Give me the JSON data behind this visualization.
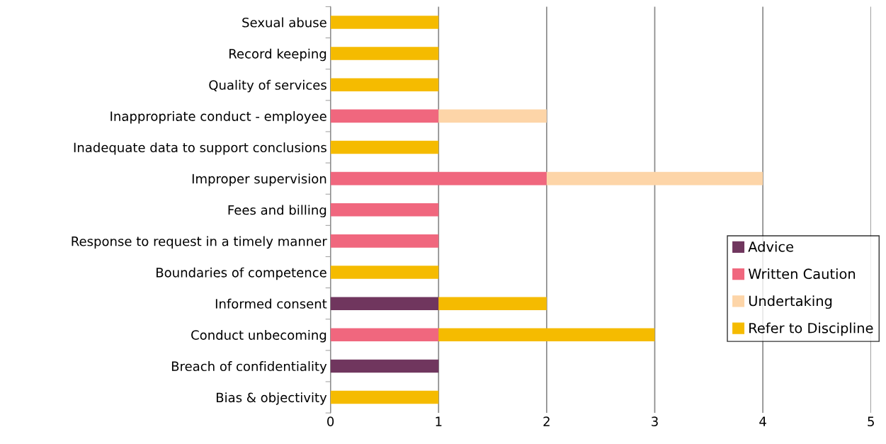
{
  "chart_data": {
    "type": "bar",
    "orientation": "horizontal",
    "stacked": true,
    "categories": [
      "Sexual abuse",
      "Record keeping",
      "Quality of services",
      "Inappropriate conduct - employee",
      "Inadequate data to support conclusions",
      "Improper supervision",
      "Fees and billing",
      "Response to request in a timely manner",
      "Boundaries of competence",
      "Informed consent",
      "Conduct unbecoming",
      "Breach of confidentiality",
      "Bias & objectivity"
    ],
    "series": [
      {
        "name": "Advice",
        "color": "#70365e",
        "values": [
          null,
          null,
          null,
          null,
          null,
          null,
          null,
          null,
          null,
          1,
          null,
          1,
          null
        ]
      },
      {
        "name": "Written Caution",
        "color": "#f0677e",
        "values": [
          null,
          null,
          null,
          1,
          null,
          2,
          1,
          1,
          null,
          null,
          1,
          null,
          null
        ]
      },
      {
        "name": "Undertaking",
        "color": "#fdd5a8",
        "values": [
          null,
          null,
          null,
          1,
          null,
          2,
          null,
          null,
          null,
          null,
          null,
          null,
          null
        ]
      },
      {
        "name": "Refer to Discipline",
        "color": "#f5bb00",
        "values": [
          1,
          1,
          1,
          null,
          1,
          null,
          null,
          null,
          1,
          1,
          2,
          null,
          1
        ]
      }
    ],
    "xlim": [
      0,
      5
    ],
    "xticks": [
      0,
      1,
      2,
      3,
      4,
      5
    ],
    "grid": "x",
    "legend": "right"
  }
}
